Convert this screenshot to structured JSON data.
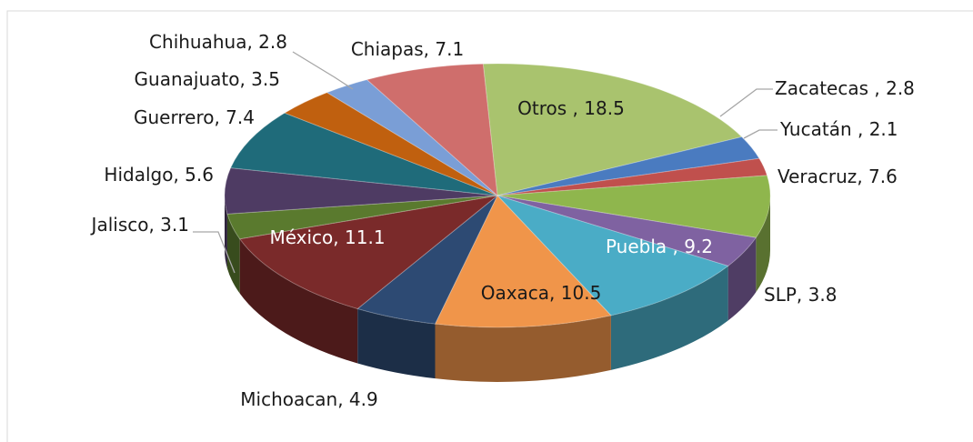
{
  "chart_data": {
    "type": "pie3d",
    "categories": [
      "Otros",
      "Zacatecas",
      "Yucatán",
      "Veracruz",
      "SLP",
      "Puebla",
      "Oaxaca",
      "Michoacan",
      "México",
      "Jalisco",
      "Hidalgo",
      "Guerrero",
      "Guanajuato",
      "Chihuahua",
      "Chiapas"
    ],
    "values": [
      18.5,
      2.8,
      2.1,
      7.6,
      3.8,
      9.2,
      10.5,
      4.9,
      11.1,
      3.1,
      5.6,
      7.4,
      3.5,
      2.8,
      7.1
    ],
    "value_labels": [
      " , 18.5",
      " , 2.8",
      " , 2.1",
      ", 7.6",
      ", 3.8",
      " , 9.2",
      ", 10.5",
      ", 4.9",
      ", 11.1",
      ", 3.1",
      ", 5.6",
      ", 7.4",
      ", 3.5",
      ", 2.8",
      ", 7.1"
    ],
    "colors": [
      "#a9c36e",
      "#4a7bc0",
      "#c0504d",
      "#8fb64d",
      "#7f62a1",
      "#4aacc6",
      "#f0954a",
      "#2d4a73",
      "#7a2a2a",
      "#5a7a2e",
      "#4e3b63",
      "#1f6b7a",
      "#c0600f",
      "#7a9ed6",
      "#cf6e6c"
    ]
  }
}
